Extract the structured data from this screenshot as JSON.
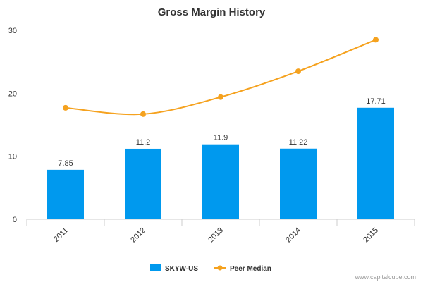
{
  "chart_data": {
    "type": "bar",
    "title": "Gross Margin History",
    "categories": [
      "2011",
      "2012",
      "2013",
      "2014",
      "2015"
    ],
    "ylim": [
      0,
      30
    ],
    "yticks": [
      0,
      10,
      20,
      30
    ],
    "grid": false,
    "legend_position": "bottom-center",
    "series": [
      {
        "name": "SKYW-US",
        "kind": "bar",
        "color": "#0099ee",
        "values": [
          7.85,
          11.2,
          11.9,
          11.22,
          17.71
        ],
        "labels": [
          "7.85",
          "11.2",
          "11.9",
          "11.22",
          "17.71"
        ]
      },
      {
        "name": "Peer Median",
        "kind": "line",
        "color": "#f5a21f",
        "values": [
          17.7,
          16.7,
          19.4,
          23.5,
          28.5
        ]
      }
    ]
  },
  "credit": "www.capitalcube.com"
}
